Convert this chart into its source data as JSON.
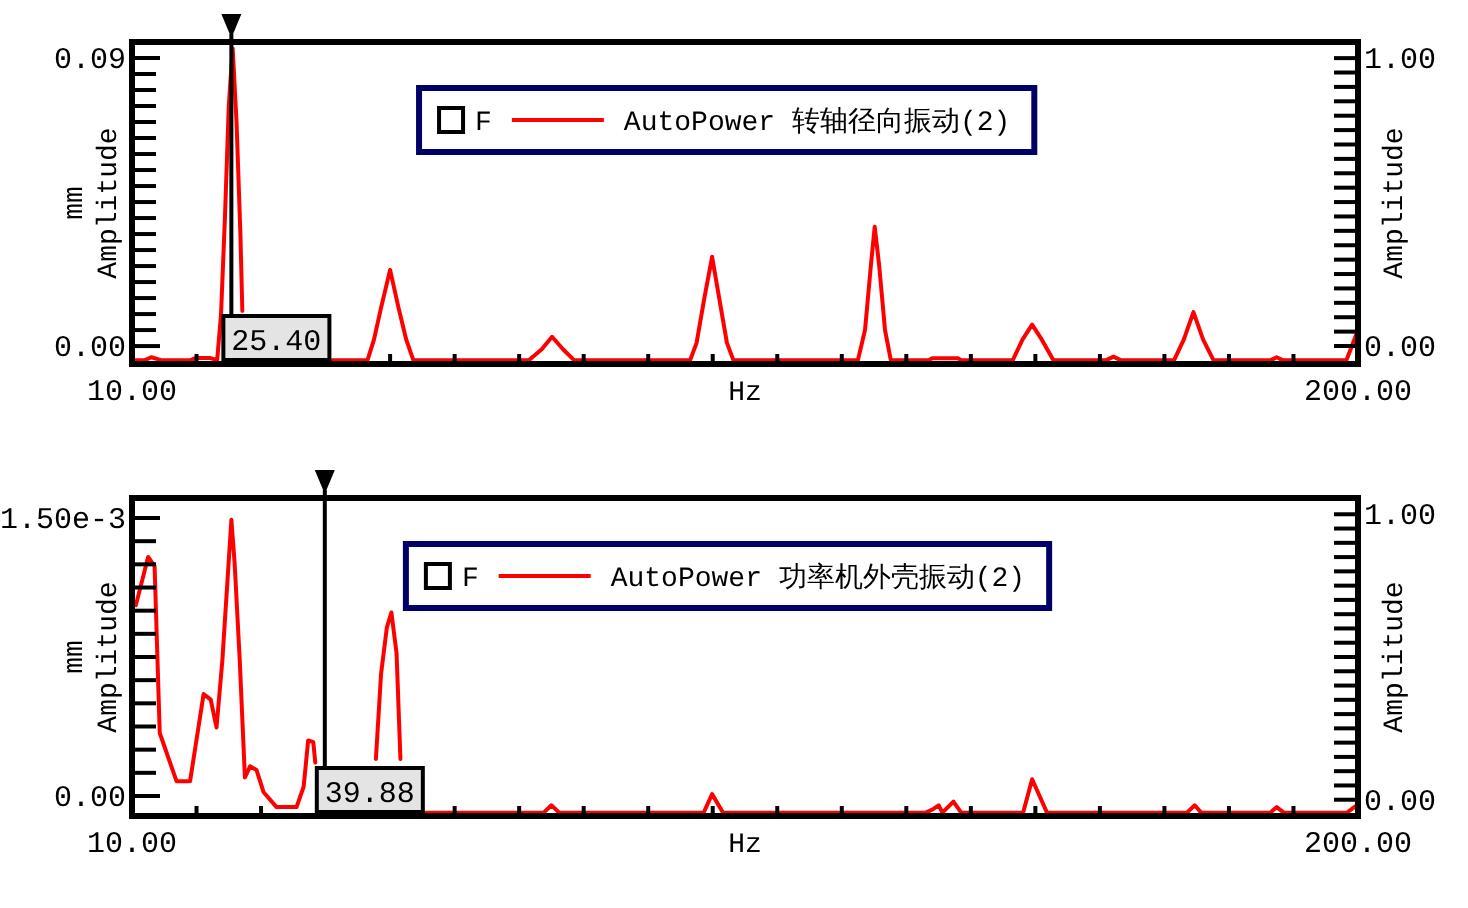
{
  "chart_data": [
    {
      "type": "line",
      "xlabel": "Hz",
      "ylabel": "mm\nAmplitude",
      "y2label": "Amplitude",
      "legend_title": "F",
      "legend": "top",
      "grid": false,
      "xlim": [
        10,
        200
      ],
      "xticks": [
        {
          "value": 10,
          "label": "10.00"
        },
        {
          "value": 20,
          "label": null
        },
        {
          "value": 30,
          "label": null
        },
        {
          "value": 40,
          "label": null
        },
        {
          "value": 50,
          "label": null
        },
        {
          "value": 60,
          "label": null
        },
        {
          "value": 70,
          "label": null
        },
        {
          "value": 80,
          "label": null
        },
        {
          "value": 90,
          "label": null
        },
        {
          "value": 100,
          "label": null
        },
        {
          "value": 110,
          "label": null
        },
        {
          "value": 120,
          "label": null
        },
        {
          "value": 130,
          "label": null
        },
        {
          "value": 140,
          "label": null
        },
        {
          "value": 150,
          "label": null
        },
        {
          "value": 160,
          "label": null
        },
        {
          "value": 170,
          "label": null
        },
        {
          "value": 180,
          "label": null
        },
        {
          "value": 190,
          "label": null
        },
        {
          "value": 200,
          "label": "200.00"
        }
      ],
      "ylim": [
        -0.0056,
        0.095
      ],
      "yticks": [
        {
          "value": 0,
          "label": "0.00"
        },
        {
          "value": 0.005,
          "label": null
        },
        {
          "value": 0.01,
          "label": null
        },
        {
          "value": 0.015,
          "label": null
        },
        {
          "value": 0.02,
          "label": null
        },
        {
          "value": 0.025,
          "label": null
        },
        {
          "value": 0.03,
          "label": null
        },
        {
          "value": 0.035,
          "label": null
        },
        {
          "value": 0.04,
          "label": null
        },
        {
          "value": 0.045,
          "label": null
        },
        {
          "value": 0.05,
          "label": null
        },
        {
          "value": 0.055,
          "label": null
        },
        {
          "value": 0.06,
          "label": null
        },
        {
          "value": 0.065,
          "label": null
        },
        {
          "value": 0.07,
          "label": null
        },
        {
          "value": 0.075,
          "label": null
        },
        {
          "value": 0.08,
          "label": null
        },
        {
          "value": 0.085,
          "label": null
        },
        {
          "value": 0.09,
          "label": "0.09"
        }
      ],
      "y2lim": [
        -0.0625,
        1.056
      ],
      "y2ticks": [
        {
          "value": 0,
          "label": "0.00"
        },
        {
          "value": 0.05,
          "label": null
        },
        {
          "value": 0.1,
          "label": null
        },
        {
          "value": 0.15,
          "label": null
        },
        {
          "value": 0.2,
          "label": null
        },
        {
          "value": 0.25,
          "label": null
        },
        {
          "value": 0.3,
          "label": null
        },
        {
          "value": 0.35,
          "label": null
        },
        {
          "value": 0.4,
          "label": null
        },
        {
          "value": 0.45,
          "label": null
        },
        {
          "value": 0.5,
          "label": null
        },
        {
          "value": 0.55,
          "label": null
        },
        {
          "value": 0.6,
          "label": null
        },
        {
          "value": 0.65,
          "label": null
        },
        {
          "value": 0.7,
          "label": null
        },
        {
          "value": 0.75,
          "label": null
        },
        {
          "value": 0.8,
          "label": null
        },
        {
          "value": 0.85,
          "label": null
        },
        {
          "value": 0.9,
          "label": null
        },
        {
          "value": 0.95,
          "label": null
        },
        {
          "value": 1,
          "label": "1.00"
        }
      ],
      "ref_lines": [
        {
          "axis": "x",
          "value": 25.4,
          "label": "25.40"
        }
      ],
      "series": [
        {
          "name": "AutoPower 转轴径向振动(2)",
          "color": "#ff0000",
          "x": [
            10,
            12,
            13,
            14.5,
            19,
            20,
            22,
            23.2,
            23.8,
            24.4,
            25,
            25.6,
            26.2,
            26.8,
            27.1,
            30,
            41,
            46.5,
            47.5,
            48.6,
            50,
            51.3,
            52.5,
            53.6,
            71.5,
            73.5,
            75.1,
            76.8,
            78.5,
            96.5,
            97.5,
            98.7,
            99.9,
            101,
            102.2,
            103.2,
            122.5,
            123.6,
            124.5,
            125.1,
            125.8,
            126.7,
            127.6,
            133.5,
            134,
            138,
            138.5,
            146.5,
            148,
            149.5,
            151,
            152.8,
            161,
            162.1,
            163.2,
            171.5,
            173,
            174.5,
            176,
            177.6,
            186.5,
            187.4,
            188.3,
            198.2,
            200
          ],
          "values": [
            -0.0044,
            -0.0044,
            -0.0035,
            -0.0044,
            -0.0044,
            -0.0037,
            -0.0037,
            -0.0044,
            0.01,
            0.04,
            0.075,
            0.093,
            0.07,
            0.035,
            0.011,
            null,
            -0.0044,
            -0.0044,
            0.002,
            0.012,
            0.0238,
            0.012,
            0.002,
            -0.0044,
            -0.0044,
            -0.001,
            0.0029,
            -0.001,
            -0.0044,
            -0.0044,
            0.001,
            0.015,
            0.0279,
            0.015,
            0.001,
            -0.0044,
            -0.0044,
            0.005,
            0.025,
            0.0373,
            0.025,
            0.005,
            -0.0044,
            -0.0044,
            -0.0038,
            -0.0038,
            -0.0044,
            -0.0044,
            0.002,
            0.0067,
            0.002,
            -0.0044,
            -0.0044,
            -0.0033,
            -0.0044,
            -0.0044,
            0.002,
            0.0106,
            0.002,
            -0.0044,
            -0.0044,
            -0.0035,
            -0.0044,
            -0.0044,
            0.005
          ]
        }
      ]
    },
    {
      "type": "line",
      "xlabel": "Hz",
      "ylabel": "mm\nAmplitude",
      "y2label": "Amplitude",
      "legend_title": "F",
      "legend": "top",
      "grid": false,
      "xlim": [
        10,
        200
      ],
      "xticks": [
        {
          "value": 10,
          "label": "10.00"
        },
        {
          "value": 20,
          "label": null
        },
        {
          "value": 30,
          "label": null
        },
        {
          "value": 40,
          "label": null
        },
        {
          "value": 50,
          "label": null
        },
        {
          "value": 60,
          "label": null
        },
        {
          "value": 70,
          "label": null
        },
        {
          "value": 80,
          "label": null
        },
        {
          "value": 90,
          "label": null
        },
        {
          "value": 100,
          "label": null
        },
        {
          "value": 110,
          "label": null
        },
        {
          "value": 120,
          "label": null
        },
        {
          "value": 130,
          "label": null
        },
        {
          "value": 140,
          "label": null
        },
        {
          "value": 150,
          "label": null
        },
        {
          "value": 160,
          "label": null
        },
        {
          "value": 170,
          "label": null
        },
        {
          "value": 180,
          "label": null
        },
        {
          "value": 190,
          "label": null
        },
        {
          "value": 200,
          "label": "200.00"
        }
      ],
      "ylim": [
        -0.000108,
        0.001608
      ],
      "yticks": [
        {
          "value": 0,
          "label": "0.00"
        },
        {
          "value": 0.000125,
          "label": null
        },
        {
          "value": 0.00025,
          "label": null
        },
        {
          "value": 0.000375,
          "label": null
        },
        {
          "value": 0.0005,
          "label": null
        },
        {
          "value": 0.000625,
          "label": null
        },
        {
          "value": 0.00075,
          "label": null
        },
        {
          "value": 0.000875,
          "label": null
        },
        {
          "value": 0.001,
          "label": null
        },
        {
          "value": 0.001125,
          "label": null
        },
        {
          "value": 0.00125,
          "label": null
        },
        {
          "value": 0.001375,
          "label": null
        },
        {
          "value": 0.0015,
          "label": "1.50e-3"
        }
      ],
      "y2lim": [
        -0.057,
        1.057
      ],
      "y2ticks": [
        {
          "value": 0,
          "label": "0.00"
        },
        {
          "value": 0.05,
          "label": null
        },
        {
          "value": 0.1,
          "label": null
        },
        {
          "value": 0.15,
          "label": null
        },
        {
          "value": 0.2,
          "label": null
        },
        {
          "value": 0.25,
          "label": null
        },
        {
          "value": 0.3,
          "label": null
        },
        {
          "value": 0.35,
          "label": null
        },
        {
          "value": 0.4,
          "label": null
        },
        {
          "value": 0.45,
          "label": null
        },
        {
          "value": 0.5,
          "label": null
        },
        {
          "value": 0.55,
          "label": null
        },
        {
          "value": 0.6,
          "label": null
        },
        {
          "value": 0.65,
          "label": null
        },
        {
          "value": 0.7,
          "label": null
        },
        {
          "value": 0.75,
          "label": null
        },
        {
          "value": 0.8,
          "label": null
        },
        {
          "value": 0.85,
          "label": null
        },
        {
          "value": 0.9,
          "label": null
        },
        {
          "value": 0.95,
          "label": null
        },
        {
          "value": 1,
          "label": "1.00"
        }
      ],
      "ref_lines": [
        {
          "axis": "x",
          "value": 39.88,
          "label": "39.88"
        }
      ],
      "series": [
        {
          "name": "AutoPower 功率机外壳振动(2)",
          "color": "#ff0000",
          "x": [
            10.6,
            12.5,
            13.5,
            14.3,
            16.9,
            19,
            21.1,
            22.2,
            23.1,
            24,
            25.4,
            25.9,
            26.7,
            27.5,
            28.3,
            29.3,
            30.4,
            32.4,
            35.5,
            36.6,
            37.3,
            38.1,
            38.4,
            43,
            47.8,
            48.6,
            49.5,
            50.2,
            51,
            51.6,
            53,
            55,
            73.8,
            75,
            76.2,
            98.6,
            99.9,
            101.6,
            133,
            134.2,
            135,
            135.6,
            137.3,
            138.5,
            148.1,
            149.5,
            151.8,
            173.5,
            174.7,
            175.7,
            186.4,
            187.4,
            188.5,
            198.3,
            199.8
          ],
          "values": [
            0.00103,
            0.00129,
            0.00124,
            0.00034,
            8e-05,
            8e-05,
            0.00055,
            0.00052,
            0.00037,
            0.00073,
            0.00149,
            0.00126,
            0.00073,
            0.0001,
            0.00016,
            0.00014,
            2e-05,
            -6e-05,
            -6e-05,
            5e-05,
            0.0003,
            0.00029,
            0.00018,
            null,
            0.0002,
            0.00066,
            0.00091,
            0.00099,
            0.00077,
            0.0002,
            null,
            -9e-05,
            -9e-05,
            -5e-05,
            -9e-05,
            -9e-05,
            1e-05,
            -9e-05,
            -9e-05,
            -7e-05,
            -5e-05,
            -9e-05,
            -3e-05,
            -9e-05,
            -9e-05,
            9e-05,
            -9e-05,
            -9e-05,
            -5e-05,
            -9e-05,
            -9e-05,
            -6e-05,
            -9e-05,
            -9e-05,
            -5e-05
          ]
        }
      ]
    }
  ]
}
